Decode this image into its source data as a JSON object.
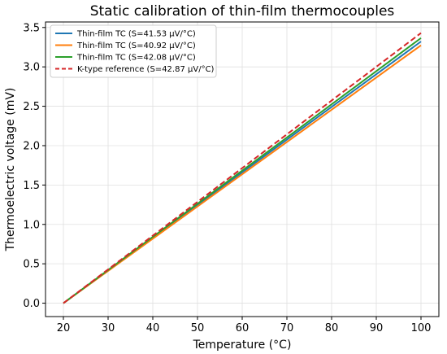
{
  "chart_data": {
    "type": "line",
    "title": "Static calibration of thin-film thermocouples",
    "xlabel": "Temperature (°C)",
    "ylabel": "Thermoelectric voltage (mV)",
    "xlim": [
      16,
      104
    ],
    "ylim": [
      -0.17,
      3.57
    ],
    "xticks": [
      20,
      30,
      40,
      50,
      60,
      70,
      80,
      90,
      100
    ],
    "yticks": [
      0.0,
      0.5,
      1.0,
      1.5,
      2.0,
      2.5,
      3.0,
      3.5
    ],
    "xtick_labels": [
      "20",
      "30",
      "40",
      "50",
      "60",
      "70",
      "80",
      "90",
      "100"
    ],
    "ytick_labels": [
      "0.0",
      "0.5",
      "1.0",
      "1.5",
      "2.0",
      "2.5",
      "3.0",
      "3.5"
    ],
    "grid": true,
    "legend_position": "top-left",
    "x": [
      20,
      100
    ],
    "series": [
      {
        "name": "Thin-film TC (S=41.53 μV/°C)",
        "values": [
          0.0,
          3.322
        ],
        "color": "#1f77b4",
        "dash": "solid"
      },
      {
        "name": "Thin-film TC (S=40.92 μV/°C)",
        "values": [
          0.0,
          3.274
        ],
        "color": "#ff7f0e",
        "dash": "solid"
      },
      {
        "name": "Thin-film TC (S=42.08 μV/°C)",
        "values": [
          0.0,
          3.366
        ],
        "color": "#2ca02c",
        "dash": "solid"
      },
      {
        "name": "K-type reference (S=42.87 μV/°C)",
        "values": [
          0.0,
          3.43
        ],
        "color": "#d62728",
        "dash": "dashed"
      }
    ]
  }
}
